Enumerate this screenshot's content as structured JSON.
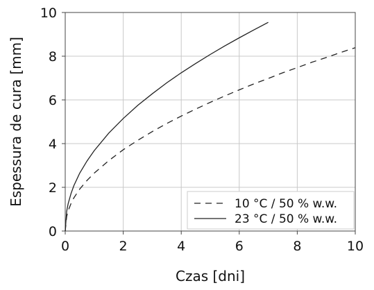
{
  "chart_data": {
    "type": "line",
    "title": "",
    "xlabel": "Czas [dni]",
    "ylabel": "Espessura de cura [mm]",
    "xlim": [
      0,
      10
    ],
    "ylim": [
      0,
      10
    ],
    "x_ticks": [
      "0",
      "2",
      "4",
      "6",
      "8",
      "10"
    ],
    "y_ticks": [
      "0",
      "2",
      "4",
      "6",
      "8",
      "10"
    ],
    "grid": true,
    "legend_position": "bottom-right",
    "series": [
      {
        "name": "10 °C / 50 % w.w.",
        "style": "dashed",
        "color": "#222222",
        "x": [
          0,
          0.05,
          0.1,
          0.2,
          0.3,
          0.5,
          0.75,
          1,
          1.5,
          2,
          2.5,
          3,
          3.5,
          4,
          4.5,
          5,
          5.5,
          6,
          6.5,
          7,
          7.5,
          8,
          8.5,
          9,
          9.5,
          10
        ],
        "y": [
          0,
          0.67,
          0.92,
          1.26,
          1.52,
          1.92,
          2.31,
          2.65,
          3.22,
          3.72,
          4.15,
          4.55,
          4.92,
          5.26,
          5.58,
          5.89,
          6.18,
          6.46,
          6.73,
          6.98,
          7.24,
          7.48,
          7.72,
          7.94,
          8.17,
          8.39
        ]
      },
      {
        "name": "23 °C / 50 % w.w.",
        "style": "solid",
        "color": "#222222",
        "x": [
          0,
          0.05,
          0.1,
          0.2,
          0.3,
          0.5,
          0.75,
          1,
          1.5,
          2,
          2.5,
          3,
          3.5,
          4,
          4.5,
          5,
          5.5,
          6,
          6.5,
          7
        ],
        "y": [
          0,
          0.9,
          1.25,
          1.72,
          2.08,
          2.65,
          3.2,
          3.68,
          4.48,
          5.15,
          5.75,
          6.28,
          6.78,
          7.24,
          7.67,
          8.08,
          8.47,
          8.84,
          9.2,
          9.55
        ]
      }
    ]
  }
}
